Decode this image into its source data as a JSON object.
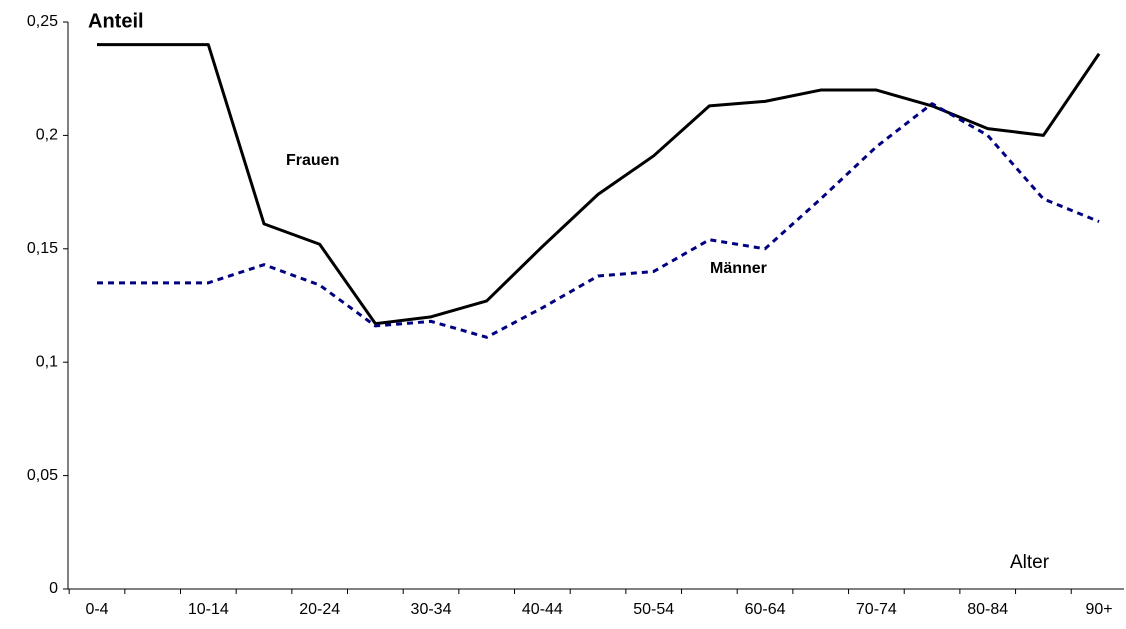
{
  "chart_data": {
    "type": "line",
    "y_label": "Anteil",
    "x_label": "Alter",
    "categories": [
      "0-4",
      null,
      "10-14",
      null,
      "20-24",
      null,
      "30-34",
      null,
      "40-44",
      null,
      "50-54",
      null,
      "60-64",
      null,
      "70-74",
      null,
      "80-84",
      null,
      "90+"
    ],
    "series": [
      {
        "name": "Frauen",
        "color": "#000000",
        "dashed": false,
        "values": [
          0.24,
          0.24,
          0.24,
          0.161,
          0.152,
          0.117,
          0.12,
          0.127,
          0.151,
          0.174,
          0.191,
          0.213,
          0.215,
          0.22,
          0.22,
          0.213,
          0.203,
          0.2,
          0.236
        ]
      },
      {
        "name": "Männer",
        "color": "#000080",
        "dashed": true,
        "values": [
          0.135,
          0.135,
          0.135,
          0.143,
          0.134,
          0.116,
          0.118,
          0.111,
          0.124,
          0.138,
          0.14,
          0.154,
          0.15,
          0.172,
          0.195,
          0.214,
          0.2,
          0.172,
          0.162
        ]
      }
    ],
    "ylim": [
      0,
      0.25
    ],
    "yticks": [
      0,
      {
        "value": 0.05,
        "label": "0,05"
      },
      {
        "value": 0.1,
        "label": "0,1"
      },
      {
        "value": 0.15,
        "label": "0,15"
      },
      {
        "value": 0.2,
        "label": "0,2"
      },
      {
        "value": 0.25,
        "label": "0,25"
      }
    ],
    "grid": false
  }
}
